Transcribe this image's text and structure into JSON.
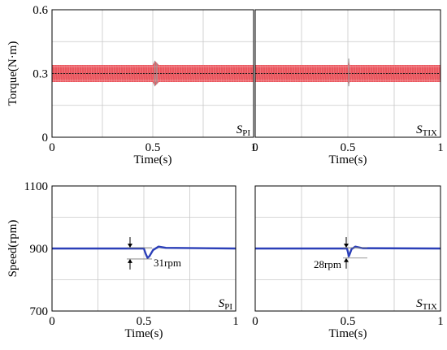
{
  "colors": {
    "torque_band": "#e8434b",
    "torque_band_edge": "#f7a7ab",
    "torque_ref": "#1a1a1a",
    "speed_line": "#2b3fb8",
    "grid": "#c8c8c8",
    "frame": "#000000"
  },
  "chart_data": [
    {
      "type": "line",
      "panel": "top-left",
      "ylabel": "Torque(N·m)",
      "xlabel": "Time(s)",
      "xlim": [
        0,
        1
      ],
      "ylim": [
        0,
        0.6
      ],
      "xticks": [
        0,
        0.5,
        1
      ],
      "yticks": [
        0,
        0.3,
        0.6
      ],
      "xtick_labels": [
        "0",
        "0.5",
        "1"
      ],
      "ytick_labels": [
        "0",
        "0.3",
        "0.6"
      ],
      "grid": true,
      "label_main": "S",
      "label_sub": "PI",
      "series": [
        {
          "style": "ripple-band",
          "x": [
            0,
            0.5,
            0.51,
            0.52,
            0.53,
            1
          ],
          "y_low": [
            0.26,
            0.26,
            0.24,
            0.25,
            0.26,
            0.26
          ],
          "y_high": [
            0.34,
            0.34,
            0.36,
            0.35,
            0.34,
            0.34
          ]
        },
        {
          "style": "reference",
          "x": [
            0,
            1
          ],
          "y": [
            0.3,
            0.3
          ]
        }
      ]
    },
    {
      "type": "line",
      "panel": "top-right",
      "ylabel": "",
      "xlabel": "Time(s)",
      "xlim": [
        0,
        1
      ],
      "ylim": [
        0,
        0.6
      ],
      "xticks": [
        0,
        0.5,
        1
      ],
      "yticks": [
        0,
        0.3,
        0.6
      ],
      "xtick_labels": [
        "0",
        "0.5",
        "1"
      ],
      "ytick_labels": [],
      "grid": true,
      "label_main": "S",
      "label_sub": "TIX",
      "series": [
        {
          "style": "ripple-band",
          "x": [
            0,
            0.5,
            0.505,
            0.51,
            1
          ],
          "y_low": [
            0.26,
            0.26,
            0.24,
            0.26,
            0.26
          ],
          "y_high": [
            0.34,
            0.34,
            0.37,
            0.34,
            0.34
          ]
        },
        {
          "style": "reference",
          "x": [
            0,
            1
          ],
          "y": [
            0.3,
            0.3
          ]
        }
      ]
    },
    {
      "type": "line",
      "panel": "bottom-left",
      "ylabel": "Speed(rpm)",
      "xlabel": "Time(s)",
      "xlim": [
        0,
        1
      ],
      "ylim": [
        700,
        1100
      ],
      "xticks": [
        0,
        0.5,
        1
      ],
      "yticks": [
        700,
        900,
        1100
      ],
      "xtick_labels": [
        "0",
        "0.5",
        "1"
      ],
      "ytick_labels": [
        "700",
        "900",
        "1100"
      ],
      "grid": true,
      "label_main": "S",
      "label_sub": "PI",
      "annotation": {
        "text": "31rpm",
        "x": 0.5,
        "y_top": 900,
        "y_bottom": 869
      },
      "series": [
        {
          "style": "speed",
          "x": [
            0,
            0.49,
            0.5,
            0.51,
            0.52,
            0.53,
            0.55,
            0.58,
            0.62,
            1
          ],
          "y": [
            900,
            900,
            900,
            883,
            870,
            875,
            895,
            906,
            902,
            900
          ]
        }
      ]
    },
    {
      "type": "line",
      "panel": "bottom-right",
      "ylabel": "",
      "xlabel": "Time(s)",
      "xlim": [
        0,
        1
      ],
      "ylim": [
        700,
        1100
      ],
      "xticks": [
        0,
        0.5,
        1
      ],
      "yticks": [
        700,
        900,
        1100
      ],
      "xtick_labels": [
        "0",
        "0.5",
        "1"
      ],
      "ytick_labels": [],
      "grid": true,
      "label_main": "S",
      "label_sub": "TIX",
      "annotation": {
        "text": "28rpm",
        "x": 0.5,
        "y_top": 900,
        "y_bottom": 872
      },
      "series": [
        {
          "style": "speed",
          "x": [
            0,
            0.495,
            0.5,
            0.505,
            0.51,
            0.52,
            0.54,
            0.58,
            1
          ],
          "y": [
            900,
            900,
            890,
            875,
            882,
            898,
            906,
            901,
            900
          ]
        }
      ]
    }
  ]
}
